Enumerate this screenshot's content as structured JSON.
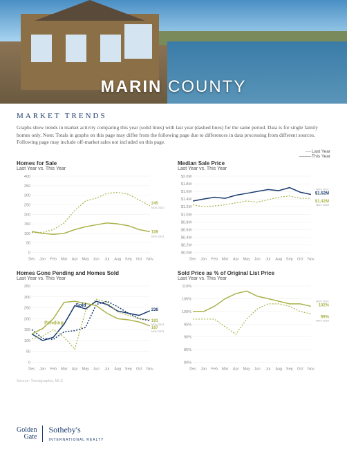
{
  "hero": {
    "title_bold": "MARIN",
    "title_light": "COUNTY"
  },
  "section_title": "MARKET TRENDS",
  "description": "Graphs show trends in market activity comparing this year (solid lines) with last year (dashed lines) for the same period. Data is for single family homes only. Note: Totals in graphs on this page may differ from the following page due to differences in data processing from different sources. Following page may include off-market sales not included on this page.",
  "legend": {
    "last": "Last Year",
    "this": "This Year"
  },
  "months": [
    "Dec",
    "Jan",
    "Feb",
    "Mar",
    "Apr",
    "May",
    "Jun",
    "Jul",
    "Aug",
    "Sep",
    "Oct",
    "Nov"
  ],
  "colors": {
    "this_year": "#1a3a6e",
    "last_year": "#aab24a",
    "grid": "#eeeeee",
    "axis": "#888888",
    "callout": "#aab24a"
  },
  "charts": {
    "homes_for_sale": {
      "title": "Homes for Sale",
      "subtitle": "Last Year vs. This Year",
      "ylim": [
        0,
        400
      ],
      "ytick_step": 50,
      "last_year": [
        105,
        105,
        120,
        155,
        220,
        270,
        285,
        310,
        315,
        305,
        275,
        245
      ],
      "this_year": [
        110,
        100,
        95,
        100,
        120,
        135,
        145,
        155,
        150,
        140,
        120,
        109
      ],
      "callouts": [
        {
          "label": "245",
          "sub": "NOV 2020",
          "series": "last",
          "color": "#aab24a"
        },
        {
          "label": "109",
          "sub": "NOV 2021",
          "series": "this",
          "color": "#aab24a"
        }
      ]
    },
    "median_price": {
      "title": "Median Sale Price",
      "subtitle": "Last Year vs. This Year",
      "ylim": [
        0,
        2.0
      ],
      "ytick_step": 0.2,
      "yprefix": "$",
      "ysuffix": "M",
      "last_year": [
        1.25,
        1.2,
        1.22,
        1.25,
        1.3,
        1.35,
        1.32,
        1.38,
        1.45,
        1.48,
        1.42,
        1.42
      ],
      "this_year": [
        1.35,
        1.4,
        1.45,
        1.42,
        1.5,
        1.55,
        1.6,
        1.65,
        1.62,
        1.7,
        1.58,
        1.52
      ],
      "callouts": [
        {
          "label": "$1.52M",
          "sub": "NOV 2021",
          "series": "this",
          "color": "#1a3a6e"
        },
        {
          "label": "$1.42M",
          "sub": "NOV 2020",
          "series": "last",
          "color": "#aab24a"
        }
      ]
    },
    "pending_sold": {
      "title": "Homes Gone Pending and Homes Sold",
      "subtitle": "Last Year vs. This Year",
      "ylim": [
        0,
        350
      ],
      "ytick_step": 50,
      "sold_label": "Sold",
      "pending_label": "Pending",
      "sold_this": [
        130,
        100,
        115,
        175,
        260,
        245,
        280,
        265,
        235,
        225,
        215,
        236
      ],
      "sold_last": [
        150,
        110,
        105,
        140,
        145,
        160,
        265,
        280,
        255,
        225,
        200,
        191
      ],
      "pending_this": [
        130,
        155,
        200,
        275,
        280,
        270,
        260,
        225,
        200,
        195,
        185,
        167
      ],
      "pending_last": [
        108,
        120,
        150,
        115,
        60,
        235,
        290,
        275,
        230,
        215,
        200,
        195
      ],
      "callouts": [
        {
          "label": "236",
          "sub": "",
          "color": "#1a3a6e"
        },
        {
          "label": "191",
          "sub": "NOV 2021",
          "color": "#aab24a"
        },
        {
          "label": "167",
          "sub": "NOV 2021",
          "color": "#aab24a"
        }
      ]
    },
    "sold_pct": {
      "title": "Sold Price as % of Original List Price",
      "subtitle": "Last Year vs. This Year",
      "ylim": [
        80,
        110
      ],
      "ytick_step": 5,
      "ysuffix": "%",
      "last_year": [
        97,
        97,
        97,
        94,
        91,
        97,
        101,
        103,
        103,
        102,
        100,
        99
      ],
      "this_year": [
        100,
        100,
        102,
        105,
        107,
        108,
        106,
        105,
        104,
        103,
        103,
        102
      ],
      "callouts": [
        {
          "label": "102%",
          "sub": "NOV 2021",
          "series": "this",
          "color": "#aab24a"
        },
        {
          "label": "99%",
          "sub": "NOV 2020",
          "series": "last",
          "color": "#aab24a"
        }
      ]
    }
  },
  "source": "Source: Trendgraphix, MLS",
  "footer": {
    "gg1": "Golden",
    "gg2": "Gate",
    "brand": "Sotheby's",
    "sub": "INTERNATIONAL REALTY"
  }
}
